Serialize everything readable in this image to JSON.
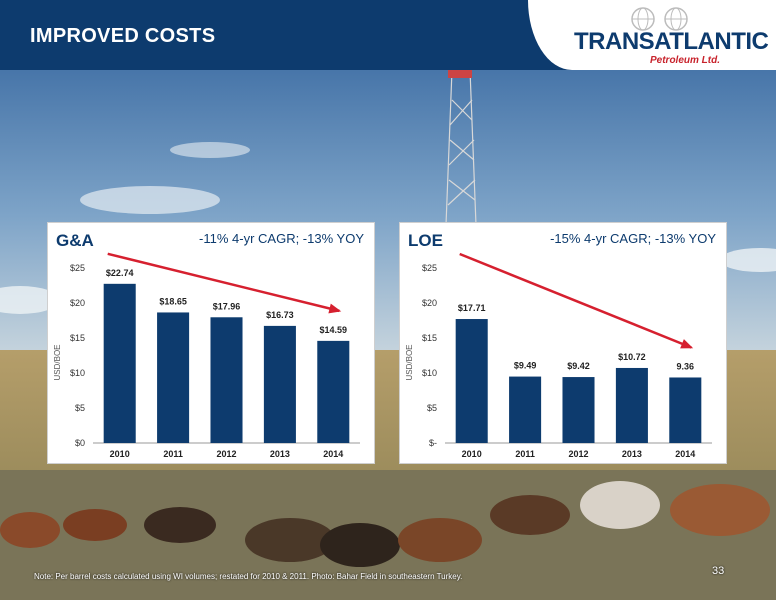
{
  "slide": {
    "title": "IMPROVED COSTS",
    "page_number": "33",
    "footnote": "Note: Per barrel costs calculated using WI volumes; restated for 2010 & 2011. Photo: Bahar Field in southeastern Turkey."
  },
  "logo": {
    "name": "TRANSATLANTIC",
    "subtitle": "Petroleum Ltd."
  },
  "colors": {
    "header": "#0d3b6e",
    "bar": "#0d3b6e",
    "trend_arrow": "#d6202f",
    "logo_red": "#c8232c"
  },
  "chart_data": [
    {
      "type": "bar",
      "title": "G&A",
      "subtitle": "-11% 4-yr CAGR; -13% YOY",
      "ylabel": "USD/BOE",
      "xlabel": "",
      "categories": [
        "2010",
        "2011",
        "2012",
        "2013",
        "2014"
      ],
      "values": [
        22.74,
        18.65,
        17.96,
        16.73,
        14.59
      ],
      "data_labels": [
        "$22.74",
        "$18.65",
        "$17.96",
        "$16.73",
        "$14.59"
      ],
      "ylim": [
        0,
        25
      ],
      "yticks": [
        0,
        5,
        10,
        15,
        20,
        25
      ],
      "ytick_labels": [
        "$0",
        "$5",
        "$10",
        "$15",
        "$20",
        "$25"
      ],
      "grid": false,
      "trend_arrow": "down"
    },
    {
      "type": "bar",
      "title": "LOE",
      "subtitle": "-15% 4-yr CAGR; -13% YOY",
      "ylabel": "USD/BOE",
      "xlabel": "",
      "categories": [
        "2010",
        "2011",
        "2012",
        "2013",
        "2014"
      ],
      "values": [
        17.71,
        9.49,
        9.42,
        10.72,
        9.36
      ],
      "data_labels": [
        "$17.71",
        "$9.49",
        "$9.42",
        "$10.72",
        "9.36"
      ],
      "ylim": [
        0,
        25
      ],
      "yticks": [
        0,
        5,
        10,
        15,
        20,
        25
      ],
      "ytick_labels": [
        "$-",
        "$5",
        "$10",
        "$15",
        "$20",
        "$25"
      ],
      "grid": false,
      "trend_arrow": "down"
    }
  ]
}
